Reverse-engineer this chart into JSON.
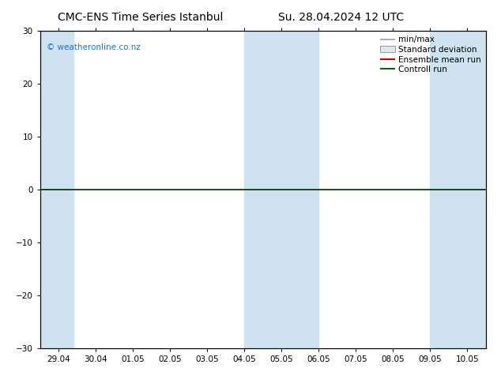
{
  "title_left": "CMC-ENS Time Series Istanbul",
  "title_right": "Su. 28.04.2024 12 UTC",
  "xlabel_ticks": [
    "29.04",
    "30.04",
    "01.05",
    "02.05",
    "03.05",
    "04.05",
    "05.05",
    "06.05",
    "07.05",
    "08.05",
    "09.05",
    "10.05"
  ],
  "ylim": [
    -30,
    30
  ],
  "yticks": [
    -30,
    -20,
    -10,
    0,
    10,
    20,
    30
  ],
  "watermark": "© weatheronline.co.nz",
  "shaded_bands": [
    {
      "xstart": -0.5,
      "xend": 0.4
    },
    {
      "xstart": 5.0,
      "xend": 7.0
    },
    {
      "xstart": 10.0,
      "xend": 11.5
    }
  ],
  "green_line_y": 0,
  "legend_items": [
    {
      "label": "min/max",
      "color": "#a0a0a0",
      "style": "hline"
    },
    {
      "label": "Standard deviation",
      "color": "#c8c8c8",
      "style": "rect"
    },
    {
      "label": "Ensemble mean run",
      "color": "#cc0000",
      "style": "line"
    },
    {
      "label": "Controll run",
      "color": "#006600",
      "style": "line"
    }
  ],
  "bg_color": "#ffffff",
  "plot_bg_color": "#ffffff",
  "shade_color": "#cde4f0",
  "zero_line_color": "#000000",
  "green_line_color": "#006600",
  "tick_label_fontsize": 7.5,
  "title_fontsize": 10,
  "watermark_fontsize": 7.5,
  "legend_fontsize": 7.5
}
